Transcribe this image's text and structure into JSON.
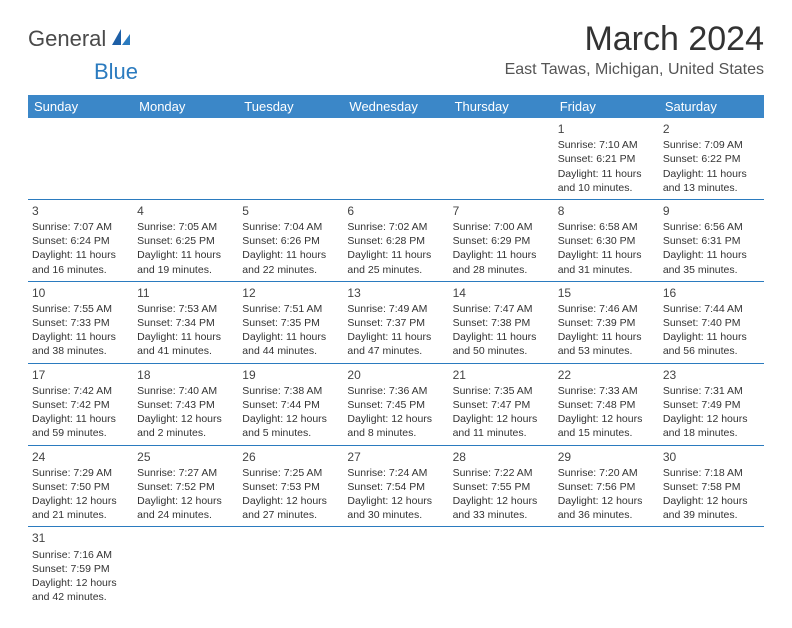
{
  "logo": {
    "textA": "General",
    "textB": "Blue"
  },
  "title": "March 2024",
  "location": "East Tawas, Michigan, United States",
  "colors": {
    "headerBg": "#3b87c8",
    "border": "#2b7bbf",
    "text": "#333"
  },
  "dayHeaders": [
    "Sunday",
    "Monday",
    "Tuesday",
    "Wednesday",
    "Thursday",
    "Friday",
    "Saturday"
  ],
  "weeks": [
    [
      null,
      null,
      null,
      null,
      null,
      {
        "n": "1",
        "sunrise": "Sunrise: 7:10 AM",
        "sunset": "Sunset: 6:21 PM",
        "daylight": "Daylight: 11 hours and 10 minutes."
      },
      {
        "n": "2",
        "sunrise": "Sunrise: 7:09 AM",
        "sunset": "Sunset: 6:22 PM",
        "daylight": "Daylight: 11 hours and 13 minutes."
      }
    ],
    [
      {
        "n": "3",
        "sunrise": "Sunrise: 7:07 AM",
        "sunset": "Sunset: 6:24 PM",
        "daylight": "Daylight: 11 hours and 16 minutes."
      },
      {
        "n": "4",
        "sunrise": "Sunrise: 7:05 AM",
        "sunset": "Sunset: 6:25 PM",
        "daylight": "Daylight: 11 hours and 19 minutes."
      },
      {
        "n": "5",
        "sunrise": "Sunrise: 7:04 AM",
        "sunset": "Sunset: 6:26 PM",
        "daylight": "Daylight: 11 hours and 22 minutes."
      },
      {
        "n": "6",
        "sunrise": "Sunrise: 7:02 AM",
        "sunset": "Sunset: 6:28 PM",
        "daylight": "Daylight: 11 hours and 25 minutes."
      },
      {
        "n": "7",
        "sunrise": "Sunrise: 7:00 AM",
        "sunset": "Sunset: 6:29 PM",
        "daylight": "Daylight: 11 hours and 28 minutes."
      },
      {
        "n": "8",
        "sunrise": "Sunrise: 6:58 AM",
        "sunset": "Sunset: 6:30 PM",
        "daylight": "Daylight: 11 hours and 31 minutes."
      },
      {
        "n": "9",
        "sunrise": "Sunrise: 6:56 AM",
        "sunset": "Sunset: 6:31 PM",
        "daylight": "Daylight: 11 hours and 35 minutes."
      }
    ],
    [
      {
        "n": "10",
        "sunrise": "Sunrise: 7:55 AM",
        "sunset": "Sunset: 7:33 PM",
        "daylight": "Daylight: 11 hours and 38 minutes."
      },
      {
        "n": "11",
        "sunrise": "Sunrise: 7:53 AM",
        "sunset": "Sunset: 7:34 PM",
        "daylight": "Daylight: 11 hours and 41 minutes."
      },
      {
        "n": "12",
        "sunrise": "Sunrise: 7:51 AM",
        "sunset": "Sunset: 7:35 PM",
        "daylight": "Daylight: 11 hours and 44 minutes."
      },
      {
        "n": "13",
        "sunrise": "Sunrise: 7:49 AM",
        "sunset": "Sunset: 7:37 PM",
        "daylight": "Daylight: 11 hours and 47 minutes."
      },
      {
        "n": "14",
        "sunrise": "Sunrise: 7:47 AM",
        "sunset": "Sunset: 7:38 PM",
        "daylight": "Daylight: 11 hours and 50 minutes."
      },
      {
        "n": "15",
        "sunrise": "Sunrise: 7:46 AM",
        "sunset": "Sunset: 7:39 PM",
        "daylight": "Daylight: 11 hours and 53 minutes."
      },
      {
        "n": "16",
        "sunrise": "Sunrise: 7:44 AM",
        "sunset": "Sunset: 7:40 PM",
        "daylight": "Daylight: 11 hours and 56 minutes."
      }
    ],
    [
      {
        "n": "17",
        "sunrise": "Sunrise: 7:42 AM",
        "sunset": "Sunset: 7:42 PM",
        "daylight": "Daylight: 11 hours and 59 minutes."
      },
      {
        "n": "18",
        "sunrise": "Sunrise: 7:40 AM",
        "sunset": "Sunset: 7:43 PM",
        "daylight": "Daylight: 12 hours and 2 minutes."
      },
      {
        "n": "19",
        "sunrise": "Sunrise: 7:38 AM",
        "sunset": "Sunset: 7:44 PM",
        "daylight": "Daylight: 12 hours and 5 minutes."
      },
      {
        "n": "20",
        "sunrise": "Sunrise: 7:36 AM",
        "sunset": "Sunset: 7:45 PM",
        "daylight": "Daylight: 12 hours and 8 minutes."
      },
      {
        "n": "21",
        "sunrise": "Sunrise: 7:35 AM",
        "sunset": "Sunset: 7:47 PM",
        "daylight": "Daylight: 12 hours and 11 minutes."
      },
      {
        "n": "22",
        "sunrise": "Sunrise: 7:33 AM",
        "sunset": "Sunset: 7:48 PM",
        "daylight": "Daylight: 12 hours and 15 minutes."
      },
      {
        "n": "23",
        "sunrise": "Sunrise: 7:31 AM",
        "sunset": "Sunset: 7:49 PM",
        "daylight": "Daylight: 12 hours and 18 minutes."
      }
    ],
    [
      {
        "n": "24",
        "sunrise": "Sunrise: 7:29 AM",
        "sunset": "Sunset: 7:50 PM",
        "daylight": "Daylight: 12 hours and 21 minutes."
      },
      {
        "n": "25",
        "sunrise": "Sunrise: 7:27 AM",
        "sunset": "Sunset: 7:52 PM",
        "daylight": "Daylight: 12 hours and 24 minutes."
      },
      {
        "n": "26",
        "sunrise": "Sunrise: 7:25 AM",
        "sunset": "Sunset: 7:53 PM",
        "daylight": "Daylight: 12 hours and 27 minutes."
      },
      {
        "n": "27",
        "sunrise": "Sunrise: 7:24 AM",
        "sunset": "Sunset: 7:54 PM",
        "daylight": "Daylight: 12 hours and 30 minutes."
      },
      {
        "n": "28",
        "sunrise": "Sunrise: 7:22 AM",
        "sunset": "Sunset: 7:55 PM",
        "daylight": "Daylight: 12 hours and 33 minutes."
      },
      {
        "n": "29",
        "sunrise": "Sunrise: 7:20 AM",
        "sunset": "Sunset: 7:56 PM",
        "daylight": "Daylight: 12 hours and 36 minutes."
      },
      {
        "n": "30",
        "sunrise": "Sunrise: 7:18 AM",
        "sunset": "Sunset: 7:58 PM",
        "daylight": "Daylight: 12 hours and 39 minutes."
      }
    ],
    [
      {
        "n": "31",
        "sunrise": "Sunrise: 7:16 AM",
        "sunset": "Sunset: 7:59 PM",
        "daylight": "Daylight: 12 hours and 42 minutes."
      },
      null,
      null,
      null,
      null,
      null,
      null
    ]
  ]
}
